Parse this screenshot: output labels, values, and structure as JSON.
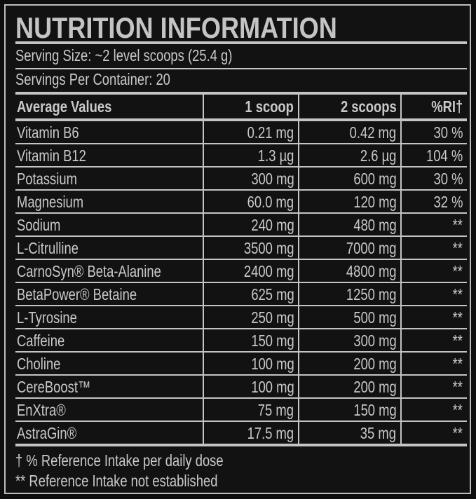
{
  "title": "NUTRITION INFORMATION",
  "serving_size": "Serving Size: ~2 level scoops (25.4 g)",
  "servings_per_container": "Servings Per Container: 20",
  "columns": [
    "Average Values",
    "1 scoop",
    "2 scoops",
    "%RI†"
  ],
  "rows": [
    [
      "Vitamin B6",
      "0.21 mg",
      "0.42 mg",
      "30 %"
    ],
    [
      "Vitamin B12",
      "1.3 µg",
      "2.6 µg",
      "104 %"
    ],
    [
      "Potassium",
      "300 mg",
      "600 mg",
      "30 %"
    ],
    [
      "Magnesium",
      "60.0 mg",
      "120 mg",
      "32 %"
    ],
    [
      "Sodium",
      "240 mg",
      "480 mg",
      "**"
    ],
    [
      "L-Citrulline",
      "3500 mg",
      "7000 mg",
      "**"
    ],
    [
      "CarnoSyn® Beta-Alanine",
      "2400 mg",
      "4800 mg",
      "**"
    ],
    [
      "BetaPower® Betaine",
      "625 mg",
      "1250 mg",
      "**"
    ],
    [
      "L-Tyrosine",
      "250 mg",
      "500 mg",
      "**"
    ],
    [
      "Caffeine",
      "150 mg",
      "300 mg",
      "**"
    ],
    [
      "Choline",
      "100 mg",
      "200 mg",
      "**"
    ],
    [
      "CereBoost™",
      "100 mg",
      "200 mg",
      "**"
    ],
    [
      "EnXtra®",
      "75 mg",
      "150 mg",
      "**"
    ],
    [
      "AstraGin®",
      "17.5 mg",
      "35 mg",
      "**"
    ]
  ],
  "footnotes": [
    "† % Reference Intake per daily dose",
    "** Reference Intake not established"
  ],
  "colors": {
    "background": "#121212",
    "text": "#c9c9c9",
    "rules": "#c4c4c4"
  }
}
